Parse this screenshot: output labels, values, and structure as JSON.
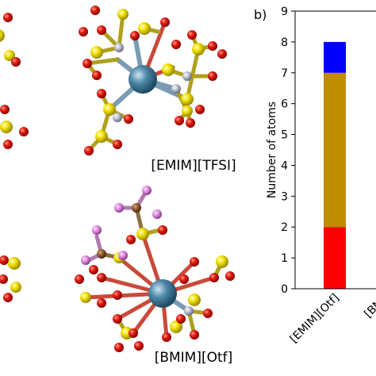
{
  "panel_a": {
    "structures": [
      {
        "label": "[EMIM][TFSI]"
      },
      {
        "label": "[BMIM][Otf]"
      }
    ]
  },
  "chart_data": {
    "type": "bar",
    "panel_label": "b)",
    "ylabel": "Number of atoms",
    "ylim": [
      0,
      9
    ],
    "yticks": [
      0,
      1,
      2,
      3,
      4,
      5,
      6,
      7,
      8,
      9
    ],
    "categories": [
      "[EMIM][Otf]",
      "[BMP"
    ],
    "stacked": true,
    "series": [
      {
        "values": [
          2,
          null
        ],
        "color": "#ff0000"
      },
      {
        "values": [
          5,
          null
        ],
        "color": "#bf8c00"
      },
      {
        "values": [
          1,
          null
        ],
        "color": "#0000ff"
      }
    ]
  },
  "colors": {
    "oxygen": "#dd1111",
    "sulfur": "#eedd00",
    "nitrogen": "#b8bccc",
    "metal": "#4f88a8",
    "carbon": "#8a5a2a",
    "fluorine": "#dd88dd"
  }
}
